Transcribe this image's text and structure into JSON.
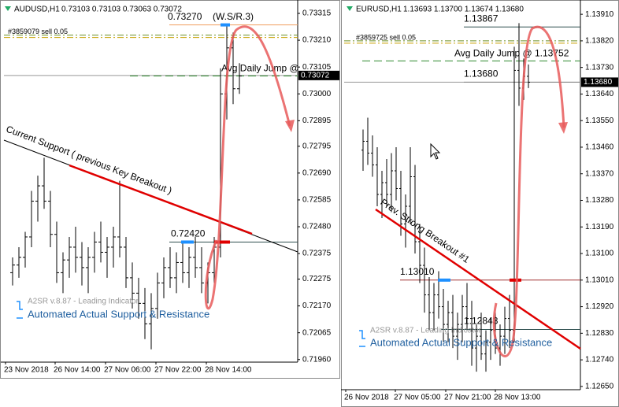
{
  "chart_data": [
    {
      "type": "ohlc",
      "symbol": "AUDUSD,H1",
      "quote": "0.73103 0.73103 0.73063 0.73072",
      "ylim": [
        0.7195,
        0.73352
      ],
      "yticks": [
        {
          "value": 0.73315,
          "label": "0.73315"
        },
        {
          "value": 0.7321,
          "label": "0.73210"
        },
        {
          "value": 0.73105,
          "label": "0.73105"
        },
        {
          "value": 0.73,
          "label": "0.73000"
        },
        {
          "value": 0.72895,
          "label": "0.72895"
        },
        {
          "value": 0.72795,
          "label": "0.72795"
        },
        {
          "value": 0.7269,
          "label": "0.72690"
        },
        {
          "value": 0.72585,
          "label": "0.72585"
        },
        {
          "value": 0.7248,
          "label": "0.72480"
        },
        {
          "value": 0.72375,
          "label": "0.72375"
        },
        {
          "value": 0.72275,
          "label": "0.72275"
        },
        {
          "value": 0.7217,
          "label": "0.72170"
        },
        {
          "value": 0.72065,
          "label": "0.72065"
        },
        {
          "value": 0.7196,
          "label": "0.71960"
        }
      ],
      "x_labels": [
        "23 Nov 2018",
        "26 Nov 14:00",
        "27 Nov 06:00",
        "27 Nov 22:00",
        "28 Nov 14:00"
      ],
      "ohlc": [
        [
          0.723,
          0.7236,
          0.7225,
          0.7233
        ],
        [
          0.7233,
          0.724,
          0.7228,
          0.7236
        ],
        [
          0.7236,
          0.7246,
          0.7232,
          0.7244
        ],
        [
          0.7244,
          0.7262,
          0.724,
          0.7258
        ],
        [
          0.7258,
          0.7268,
          0.725,
          0.7264
        ],
        [
          0.7264,
          0.7275,
          0.7255,
          0.7258
        ],
        [
          0.7258,
          0.7262,
          0.724,
          0.7245
        ],
        [
          0.7245,
          0.725,
          0.7226,
          0.723
        ],
        [
          0.723,
          0.7238,
          0.7222,
          0.7235
        ],
        [
          0.7235,
          0.7244,
          0.7228,
          0.724
        ],
        [
          0.724,
          0.7248,
          0.723,
          0.7236
        ],
        [
          0.7236,
          0.7242,
          0.7225,
          0.7232
        ],
        [
          0.7232,
          0.724,
          0.7222,
          0.7236
        ],
        [
          0.7236,
          0.7246,
          0.723,
          0.7242
        ],
        [
          0.7242,
          0.725,
          0.7234,
          0.7238
        ],
        [
          0.7238,
          0.7244,
          0.7228,
          0.724
        ],
        [
          0.724,
          0.7248,
          0.7232,
          0.7244
        ],
        [
          0.7244,
          0.7266,
          0.7236,
          0.724
        ],
        [
          0.724,
          0.7244,
          0.7224,
          0.7228
        ],
        [
          0.7228,
          0.7234,
          0.7216,
          0.7222
        ],
        [
          0.7222,
          0.7228,
          0.7212,
          0.7218
        ],
        [
          0.7218,
          0.7224,
          0.7204,
          0.721
        ],
        [
          0.721,
          0.7222,
          0.72,
          0.7216
        ],
        [
          0.7216,
          0.723,
          0.7212,
          0.7226
        ],
        [
          0.7226,
          0.7236,
          0.722,
          0.7232
        ],
        [
          0.7232,
          0.724,
          0.7224,
          0.7228
        ],
        [
          0.7228,
          0.7238,
          0.7222,
          0.7234
        ],
        [
          0.7234,
          0.7242,
          0.7226,
          0.723
        ],
        [
          0.723,
          0.724,
          0.7224,
          0.7236
        ],
        [
          0.7236,
          0.7244,
          0.7228,
          0.7232
        ],
        [
          0.7232,
          0.724,
          0.7222,
          0.7226
        ],
        [
          0.7226,
          0.7234,
          0.7218,
          0.723
        ],
        [
          0.723,
          0.7244,
          0.7226,
          0.724
        ],
        [
          0.724,
          0.731,
          0.7236,
          0.73
        ],
        [
          0.73,
          0.7327,
          0.729,
          0.7318
        ],
        [
          0.7318,
          0.7324,
          0.7296,
          0.7302
        ],
        [
          0.7302,
          0.7312,
          0.73,
          0.7307
        ]
      ],
      "levels": [
        {
          "value": 0.7327,
          "label": "0.73270",
          "color": "#f0a060"
        },
        {
          "value": 0.7242,
          "label": "0.72420",
          "color": "#2f4f4f"
        }
      ],
      "level_note": "(W.S/R.3)",
      "order": {
        "text": "#3859079 sell 0.05",
        "value": 0.7323
      },
      "avg_jump": {
        "text": "Avg Daily Jump @",
        "value": 0.7307
      },
      "current": {
        "value": 0.73072,
        "label": "0.73072"
      },
      "trend_label": "Current Support ( previous Key Breakout )",
      "indicator": "A2SR v.8.87 - Leading Indicator",
      "indicator_title": "Automated Actual Support & Resistance"
    },
    {
      "type": "ohlc",
      "symbol": "EURUSD,H1",
      "quote": "1.13693 1.13700 1.13674 1.13680",
      "ylim": [
        1.12639,
        1.13945
      ],
      "yticks": [
        {
          "value": 1.1391,
          "label": "1.13910"
        },
        {
          "value": 1.1382,
          "label": "1.13820"
        },
        {
          "value": 1.1373,
          "label": "1.13730"
        },
        {
          "value": 1.1364,
          "label": "1.13640"
        },
        {
          "value": 1.1355,
          "label": "1.13550"
        },
        {
          "value": 1.1346,
          "label": "1.13460"
        },
        {
          "value": 1.1337,
          "label": "1.13370"
        },
        {
          "value": 1.1328,
          "label": "1.13280"
        },
        {
          "value": 1.1319,
          "label": "1.13190"
        },
        {
          "value": 1.131,
          "label": "1.13100"
        },
        {
          "value": 1.1301,
          "label": "1.13010"
        },
        {
          "value": 1.1292,
          "label": "1.12920"
        },
        {
          "value": 1.1283,
          "label": "1.12830"
        },
        {
          "value": 1.1274,
          "label": "1.12740"
        },
        {
          "value": 1.1265,
          "label": "1.12650"
        }
      ],
      "x_labels": [
        "26 Nov 2018",
        "27 Nov 05:00",
        "27 Nov 21:00",
        "28 Nov 13:00"
      ],
      "ohlc": [
        [
          1.1345,
          1.1352,
          1.1338,
          1.1348
        ],
        [
          1.1348,
          1.1356,
          1.134,
          1.1344
        ],
        [
          1.1344,
          1.135,
          1.1336,
          1.134
        ],
        [
          1.134,
          1.1346,
          1.1326,
          1.133
        ],
        [
          1.133,
          1.1338,
          1.1322,
          1.1334
        ],
        [
          1.1334,
          1.1342,
          1.1326,
          1.133
        ],
        [
          1.133,
          1.1344,
          1.1324,
          1.1338
        ],
        [
          1.1338,
          1.1346,
          1.1328,
          1.1332
        ],
        [
          1.1332,
          1.1338,
          1.1316,
          1.132
        ],
        [
          1.132,
          1.133,
          1.1312,
          1.1326
        ],
        [
          1.1326,
          1.1346,
          1.132,
          1.1336
        ],
        [
          1.1336,
          1.134,
          1.131,
          1.1314
        ],
        [
          1.1314,
          1.132,
          1.13,
          1.1306
        ],
        [
          1.1306,
          1.1312,
          1.129,
          1.1296
        ],
        [
          1.1296,
          1.1302,
          1.1284,
          1.129
        ],
        [
          1.129,
          1.13,
          1.1284,
          1.1296
        ],
        [
          1.1296,
          1.1304,
          1.1288,
          1.1292
        ],
        [
          1.1292,
          1.1298,
          1.128,
          1.1286
        ],
        [
          1.1286,
          1.1294,
          1.128,
          1.129
        ],
        [
          1.129,
          1.1296,
          1.1278,
          1.1282
        ],
        [
          1.1282,
          1.129,
          1.1274,
          1.1286
        ],
        [
          1.1286,
          1.1296,
          1.128,
          1.1292
        ],
        [
          1.1292,
          1.13,
          1.1284,
          1.1288
        ],
        [
          1.1288,
          1.1294,
          1.1272,
          1.1278
        ],
        [
          1.1278,
          1.1286,
          1.127,
          1.1282
        ],
        [
          1.1282,
          1.129,
          1.1274,
          1.1276
        ],
        [
          1.1276,
          1.1284,
          1.127,
          1.128
        ],
        [
          1.128,
          1.1288,
          1.1274,
          1.1284
        ],
        [
          1.1284,
          1.129,
          1.1276,
          1.1278
        ],
        [
          1.1278,
          1.1286,
          1.1272,
          1.1282
        ],
        [
          1.1282,
          1.1292,
          1.1276,
          1.1288
        ],
        [
          1.1288,
          1.1296,
          1.1278,
          1.1284
        ],
        [
          1.1284,
          1.138,
          1.128,
          1.1372
        ],
        [
          1.1372,
          1.1388,
          1.136,
          1.1366
        ],
        [
          1.1366,
          1.1376,
          1.1362,
          1.137
        ],
        [
          1.137,
          1.1374,
          1.1366,
          1.1368
        ]
      ],
      "levels": [
        {
          "value": 1.13867,
          "label": "1.13867",
          "color": "#2f4f4f"
        },
        {
          "value": 1.1368,
          "label": "1.13680",
          "color": "#888888"
        },
        {
          "value": 1.1301,
          "label": "1.13010",
          "color": "#a03030"
        },
        {
          "value": 1.12843,
          "label": "1.12843",
          "color": "#2f4f4f"
        }
      ],
      "order": {
        "text": "#3859725 sell 0.05",
        "value": 1.1382
      },
      "avg_jump": {
        "text": "Avg Daily Jump @ 1.13752",
        "value": 1.13752
      },
      "current": {
        "value": 1.1368,
        "label": "1.13680"
      },
      "trend_label": "Prev. Strong Breakout #1",
      "indicator": "A2SR v.8.87 - Leading Indicator",
      "indicator_title": "Automated Actual Support & Resistance"
    }
  ]
}
